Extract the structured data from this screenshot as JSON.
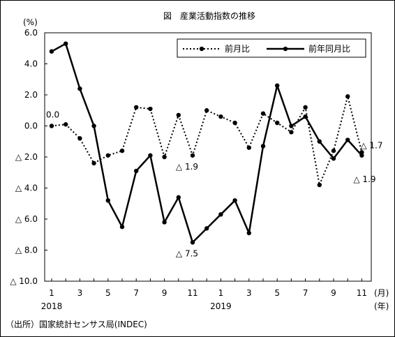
{
  "chart_data": {
    "type": "line",
    "title": "図　産業活動指数の推移",
    "yunit": "(%)",
    "ylim": [
      -10,
      6
    ],
    "yticks": [
      {
        "value": 6,
        "label": "6.0"
      },
      {
        "value": 4,
        "label": "4.0"
      },
      {
        "value": 2,
        "label": "2.0"
      },
      {
        "value": 0,
        "label": "0.0"
      },
      {
        "value": -2,
        "label": "△ 2.0"
      },
      {
        "value": -4,
        "label": "△ 4.0"
      },
      {
        "value": -6,
        "label": "△ 6.0"
      },
      {
        "value": -8,
        "label": "△ 8.0"
      },
      {
        "value": -10,
        "label": "△ 10.0"
      }
    ],
    "months": [
      "1",
      "",
      "3",
      "",
      "5",
      "",
      "7",
      "",
      "9",
      "",
      "11",
      "",
      "1",
      "",
      "3",
      "",
      "5",
      "",
      "7",
      "",
      "9",
      "",
      "11"
    ],
    "xunit_month": "(月)",
    "xunit_year": "(年)",
    "years": [
      {
        "label": "2018",
        "index": 0
      },
      {
        "label": "2019",
        "index": 12
      }
    ],
    "series": [
      {
        "name": "前月比",
        "style": "dotted",
        "values": [
          0.0,
          0.1,
          -0.8,
          -2.4,
          -1.9,
          -1.6,
          1.2,
          1.1,
          -2.0,
          0.7,
          -1.9,
          1.0,
          0.6,
          0.2,
          -1.4,
          0.8,
          0.2,
          -0.4,
          1.2,
          -3.8,
          -1.6,
          1.9,
          -1.7
        ]
      },
      {
        "name": "前年同月比",
        "style": "solid",
        "values": [
          4.8,
          5.3,
          2.4,
          0.0,
          -4.8,
          -6.5,
          -2.9,
          -1.9,
          -6.2,
          -4.6,
          -7.5,
          -6.6,
          -5.7,
          -4.8,
          -6.9,
          -1.3,
          2.6,
          0.0,
          0.6,
          -1.0,
          -2.1,
          -0.9,
          -1.9
        ]
      }
    ],
    "annotations": [
      {
        "text": "0.0",
        "index": 0,
        "value": 0.0
      },
      {
        "text": "△ 1.9",
        "index": 10,
        "value": -1.9
      },
      {
        "text": "△ 7.5",
        "index": 10,
        "value": -7.5
      },
      {
        "text": "△ 1.7",
        "index": 22,
        "value": -1.7
      },
      {
        "text": "△ 1.9",
        "index": 22,
        "value": -1.9
      }
    ],
    "legend_position": "top-right",
    "grid": false
  },
  "source": "（出所）国家統計センサス局(INDEC)",
  "colors": {
    "line": "#000000",
    "background": "#ffffff"
  }
}
